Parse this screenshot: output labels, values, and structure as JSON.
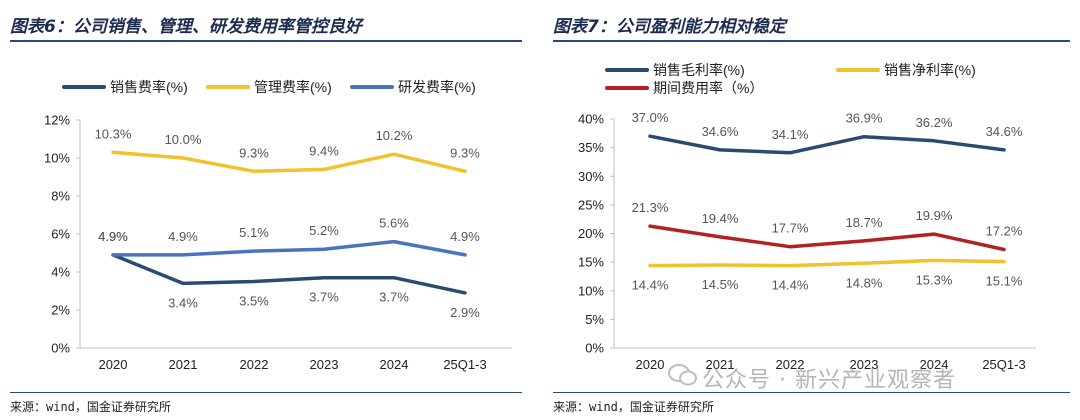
{
  "left": {
    "title": "图表6：公司销售、管理、研发费用率管控良好",
    "source": "来源：wind，国金证券研究所"
  },
  "right": {
    "title": "图表7：公司盈利能力相对稳定",
    "source": "来源：wind，国金证券研究所"
  },
  "watermark": "公众号 · 新兴产业观察者",
  "colors": {
    "navy": "#2b4a6f",
    "gold": "#f2c12e",
    "blue": "#4a74c0",
    "red": "#b22222",
    "rule": "#2b4a7a"
  },
  "chart_data": [
    {
      "type": "line",
      "title": "图表6：公司销售、管理、研发费用率管控良好",
      "categories": [
        "2020",
        "2021",
        "2022",
        "2023",
        "2024",
        "25Q1-3"
      ],
      "ylim": [
        0,
        12
      ],
      "yticks": [
        "0%",
        "2%",
        "4%",
        "6%",
        "8%",
        "10%",
        "12%"
      ],
      "legend": "top",
      "series": [
        {
          "name": "销售费率(%)",
          "color": "#2b4a6f",
          "values": [
            4.9,
            3.4,
            3.5,
            3.7,
            3.7,
            2.9
          ],
          "labels": [
            "4.9%",
            "3.4%",
            "3.5%",
            "3.7%",
            "3.7%",
            "2.9%"
          ]
        },
        {
          "name": "管理费率(%)",
          "color": "#f2c12e",
          "values": [
            10.3,
            10.0,
            9.3,
            9.4,
            10.2,
            9.3
          ],
          "labels": [
            "10.3%",
            "10.0%",
            "9.3%",
            "9.4%",
            "10.2%",
            "9.3%"
          ]
        },
        {
          "name": "研发费率(%)",
          "color": "#4a74c0",
          "values": [
            4.9,
            4.9,
            5.1,
            5.2,
            5.6,
            4.9
          ],
          "labels": [
            "4.9%",
            "4.9%",
            "5.1%",
            "5.2%",
            "5.6%",
            "4.9%"
          ]
        }
      ]
    },
    {
      "type": "line",
      "title": "图表7：公司盈利能力相对稳定",
      "categories": [
        "2020",
        "2021",
        "2022",
        "2023",
        "2024",
        "25Q1-3"
      ],
      "ylim": [
        0,
        40
      ],
      "yticks": [
        "0%",
        "5%",
        "10%",
        "15%",
        "20%",
        "25%",
        "30%",
        "35%",
        "40%"
      ],
      "legend": "top",
      "series": [
        {
          "name": "销售毛利率(%)",
          "color": "#2b4a6f",
          "values": [
            37.0,
            34.6,
            34.1,
            36.9,
            36.2,
            34.6
          ],
          "labels": [
            "37.0%",
            "34.6%",
            "34.1%",
            "36.9%",
            "36.2%",
            "34.6%"
          ]
        },
        {
          "name": "销售净利率(%)",
          "color": "#f2c12e",
          "values": [
            14.4,
            14.5,
            14.4,
            14.8,
            15.3,
            15.1
          ],
          "labels": [
            "14.4%",
            "14.5%",
            "14.4%",
            "14.8%",
            "15.3%",
            "15.1%"
          ]
        },
        {
          "name": "期间费用率（%）",
          "color": "#b22222",
          "values": [
            21.3,
            19.4,
            17.7,
            18.7,
            19.9,
            17.2
          ],
          "labels": [
            "21.3%",
            "19.4%",
            "17.7%",
            "18.7%",
            "19.9%",
            "17.2%"
          ]
        }
      ]
    }
  ]
}
